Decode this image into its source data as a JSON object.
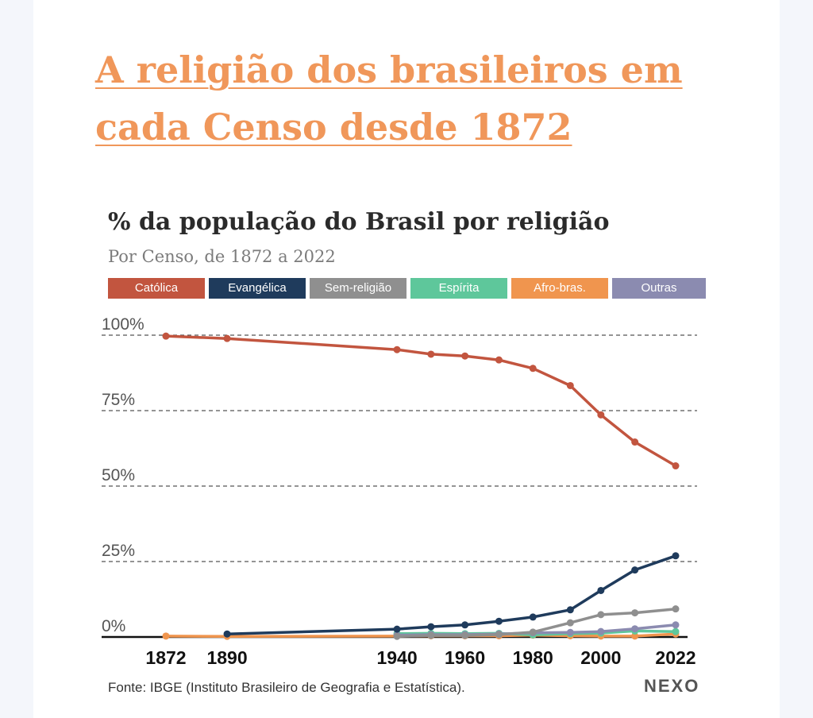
{
  "article": {
    "headline": "A religião dos brasileiros em cada Censo desde 1872"
  },
  "footer": {
    "source": "Fonte: IBGE (Instituto Brasileiro de Geografia e Estatística).",
    "brand": "NEXO"
  },
  "colors": {
    "catolica": "#c2553f",
    "evangelica": "#1f3b5c",
    "sem_religiao": "#8f8f8f",
    "espirita": "#5ec79b",
    "afro_bras": "#f0954e",
    "outras": "#8b8bb0",
    "headline": "#f0975a"
  },
  "chart_data": {
    "type": "line",
    "title": "% da população do Brasil por religião",
    "subtitle": "Por Censo, de 1872 a 2022",
    "xlabel": "",
    "ylabel": "",
    "ylim": [
      0,
      100
    ],
    "yticks": [
      {
        "value": 100,
        "label": "100%"
      },
      {
        "value": 75,
        "label": "75%"
      },
      {
        "value": 50,
        "label": "50%"
      },
      {
        "value": 25,
        "label": "25%"
      },
      {
        "value": 0,
        "label": "0%"
      }
    ],
    "xticks": [
      1872,
      1890,
      1940,
      1960,
      1980,
      2000,
      2022
    ],
    "xlim": [
      1872,
      2022
    ],
    "grid": "horizontal dashed",
    "legend_position": "top",
    "series": [
      {
        "key": "catolica",
        "name": "Católica",
        "color": "#c2553f",
        "x": [
          1872,
          1890,
          1940,
          1950,
          1960,
          1970,
          1980,
          1991,
          2000,
          2010,
          2022
        ],
        "values": [
          99.7,
          98.9,
          95.2,
          93.7,
          93.1,
          91.8,
          89.0,
          83.3,
          73.6,
          64.6,
          56.7
        ]
      },
      {
        "key": "evangelica",
        "name": "Evangélica",
        "color": "#1f3b5c",
        "x": [
          1890,
          1940,
          1950,
          1960,
          1970,
          1980,
          1991,
          2000,
          2010,
          2022
        ],
        "values": [
          1.0,
          2.6,
          3.4,
          4.0,
          5.2,
          6.6,
          9.0,
          15.4,
          22.2,
          26.9
        ]
      },
      {
        "key": "sem_religiao",
        "name": "Sem-religião",
        "color": "#8f8f8f",
        "x": [
          1940,
          1950,
          1960,
          1970,
          1980,
          1991,
          2000,
          2010,
          2022
        ],
        "values": [
          0.2,
          0.5,
          0.5,
          0.8,
          1.6,
          4.7,
          7.4,
          8.0,
          9.3
        ]
      },
      {
        "key": "espirita",
        "name": "Espírita",
        "color": "#5ec79b",
        "x": [
          1940,
          1950,
          1960,
          1970,
          1980,
          1991,
          2000,
          2010,
          2022
        ],
        "values": [
          1.1,
          1.2,
          1.1,
          1.2,
          0.7,
          1.1,
          1.3,
          2.0,
          1.8
        ]
      },
      {
        "key": "afro_bras",
        "name": "Afro-bras.",
        "color": "#f0954e",
        "x": [
          1872,
          1890,
          1940,
          1950,
          1960,
          1970,
          1980,
          1991,
          2000,
          2010,
          2022
        ],
        "values": [
          0.3,
          0.2,
          0.3,
          0.4,
          0.4,
          0.4,
          0.6,
          0.4,
          0.3,
          0.3,
          1.0
        ]
      },
      {
        "key": "outras",
        "name": "Outras",
        "color": "#8b8bb0",
        "x": [
          1940,
          1950,
          1960,
          1970,
          1980,
          1991,
          2000,
          2010,
          2022
        ],
        "values": [
          0.6,
          0.8,
          0.8,
          1.0,
          1.4,
          1.5,
          1.8,
          2.7,
          4.0
        ]
      }
    ]
  }
}
